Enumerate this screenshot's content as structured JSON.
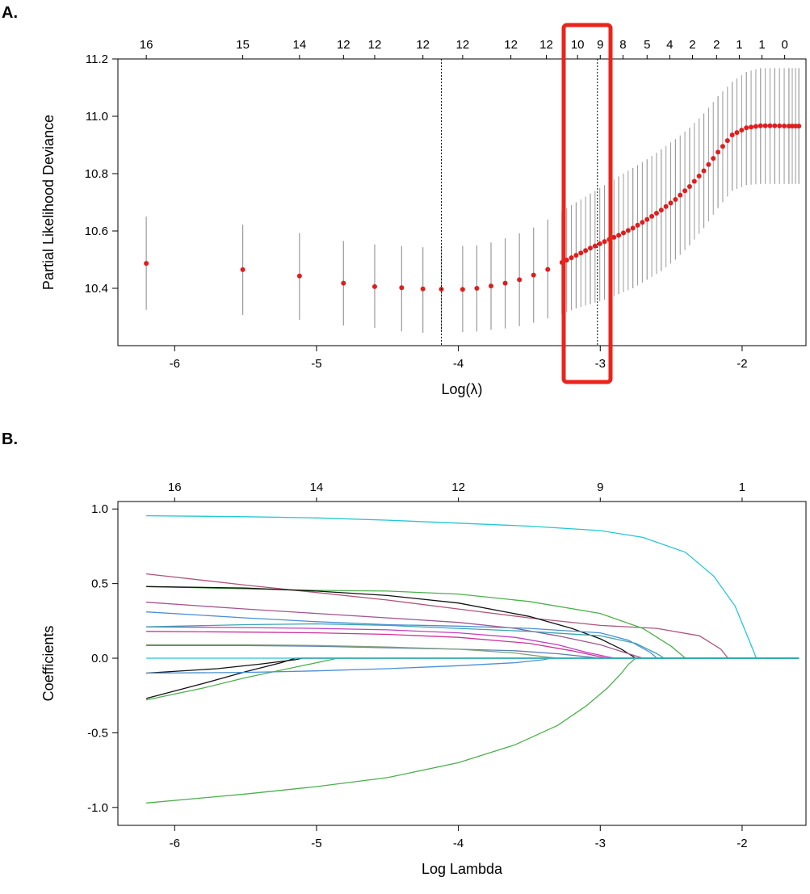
{
  "panels": {
    "a_label": "A.",
    "b_label": "B."
  },
  "chart_data": [
    {
      "type": "scatter",
      "title": "",
      "xlabel": "Log(λ)",
      "ylabel": "Partial Likelihood Deviance",
      "xlim": [
        -6.4,
        -1.55
      ],
      "ylim": [
        10.2,
        11.2
      ],
      "xticks": [
        -6,
        -5,
        -4,
        -3,
        -2
      ],
      "yticks": [
        10.4,
        10.6,
        10.8,
        11.0,
        11.2
      ],
      "xtick_labels": [
        "-6",
        "-5",
        "-4",
        "-3",
        "-2"
      ],
      "ytick_labels": [
        "10.4",
        "10.6",
        "10.8",
        "11.0",
        "11.2"
      ],
      "top_axis_counts": [
        {
          "x": -6.2,
          "label": "16"
        },
        {
          "x": -5.52,
          "label": "15"
        },
        {
          "x": -5.12,
          "label": "14"
        },
        {
          "x": -4.81,
          "label": "12"
        },
        {
          "x": -4.59,
          "label": "12"
        },
        {
          "x": -4.25,
          "label": "12"
        },
        {
          "x": -3.97,
          "label": "12"
        },
        {
          "x": -3.63,
          "label": "12"
        },
        {
          "x": -3.38,
          "label": "12"
        },
        {
          "x": -3.16,
          "label": "10"
        },
        {
          "x": -3.0,
          "label": "9"
        },
        {
          "x": -2.84,
          "label": "8"
        },
        {
          "x": -2.67,
          "label": "5"
        },
        {
          "x": -2.51,
          "label": "4"
        },
        {
          "x": -2.35,
          "label": "2"
        },
        {
          "x": -2.18,
          "label": "2"
        },
        {
          "x": -2.02,
          "label": "1"
        },
        {
          "x": -1.86,
          "label": "1"
        },
        {
          "x": -1.7,
          "label": "0"
        }
      ],
      "lambda_min": -4.12,
      "lambda_1se": -3.02,
      "highlight_color": "#e8251c",
      "point_color": "#e01d1d",
      "errorbar_color": "#9a9a9a",
      "x": [
        -6.2,
        -5.52,
        -5.12,
        -4.81,
        -4.59,
        -4.4,
        -4.25,
        -4.12,
        -3.97,
        -3.87,
        -3.77,
        -3.67,
        -3.57,
        -3.47,
        -3.37,
        -3.27,
        -3.17,
        -3.07,
        -2.97,
        -2.87,
        -2.77,
        -2.67,
        -2.57,
        -2.47,
        -2.37,
        -2.27,
        -2.17,
        -2.07,
        -1.97,
        -1.87,
        -1.77,
        -1.67,
        -1.6
      ],
      "y": [
        10.487,
        10.465,
        10.443,
        10.418,
        10.406,
        10.402,
        10.398,
        10.397,
        10.396,
        10.4,
        10.408,
        10.418,
        10.43,
        10.446,
        10.466,
        10.49,
        10.515,
        10.54,
        10.563,
        10.585,
        10.61,
        10.64,
        10.673,
        10.71,
        10.755,
        10.81,
        10.875,
        10.935,
        10.96,
        10.967,
        10.967,
        10.966,
        10.966
      ],
      "lower": [
        10.325,
        10.307,
        10.29,
        10.27,
        10.262,
        10.25,
        10.245,
        10.25,
        10.248,
        10.25,
        10.255,
        10.26,
        10.268,
        10.28,
        10.295,
        10.31,
        10.33,
        10.345,
        10.36,
        10.38,
        10.4,
        10.43,
        10.46,
        10.5,
        10.55,
        10.61,
        10.68,
        10.74,
        10.76,
        10.764,
        10.764,
        10.764,
        10.764
      ],
      "upper": [
        10.65,
        10.622,
        10.593,
        10.565,
        10.553,
        10.547,
        10.543,
        10.545,
        10.548,
        10.55,
        10.56,
        10.575,
        10.592,
        10.612,
        10.64,
        10.67,
        10.7,
        10.73,
        10.76,
        10.79,
        10.82,
        10.85,
        10.885,
        10.92,
        10.96,
        11.01,
        11.07,
        11.12,
        11.155,
        11.168,
        11.168,
        11.168,
        11.168
      ]
    },
    {
      "type": "line",
      "title": "",
      "xlabel": "Log Lambda",
      "ylabel": "Coefficients",
      "xlim": [
        -6.4,
        -1.55
      ],
      "ylim": [
        -1.12,
        1.05
      ],
      "xticks": [
        -6,
        -5,
        -4,
        -3,
        -2
      ],
      "yticks": [
        -1.0,
        -0.5,
        0.0,
        0.5,
        1.0
      ],
      "xtick_labels": [
        "-6",
        "-5",
        "-4",
        "-3",
        "-2"
      ],
      "ytick_labels": [
        "-1.0",
        "-0.5",
        "0.0",
        "0.5",
        "1.0"
      ],
      "top_axis_counts": [
        {
          "x": -6.0,
          "label": "16"
        },
        {
          "x": -5.0,
          "label": "14"
        },
        {
          "x": -4.0,
          "label": "12"
        },
        {
          "x": -3.0,
          "label": "9"
        },
        {
          "x": -2.0,
          "label": "1"
        }
      ],
      "series": [
        {
          "color": "#22c7d3",
          "x": [
            -6.2,
            -5.5,
            -5.0,
            -4.5,
            -4.0,
            -3.5,
            -3.0,
            -2.7,
            -2.4,
            -2.2,
            -2.05,
            -1.95,
            -1.9,
            -1.6
          ],
          "y": [
            0.955,
            0.948,
            0.94,
            0.925,
            0.905,
            0.885,
            0.855,
            0.81,
            0.71,
            0.55,
            0.35,
            0.12,
            0.0,
            0.0
          ]
        },
        {
          "color": "#b0557a",
          "x": [
            -6.2,
            -5.5,
            -5.0,
            -4.5,
            -4.0,
            -3.5,
            -3.0,
            -2.6,
            -2.3,
            -2.15,
            -2.1,
            -1.6
          ],
          "y": [
            0.565,
            0.49,
            0.44,
            0.39,
            0.33,
            0.27,
            0.22,
            0.2,
            0.15,
            0.06,
            0.0,
            0.0
          ]
        },
        {
          "color": "#4cb04c",
          "x": [
            -6.2,
            -5.5,
            -5.0,
            -4.5,
            -4.0,
            -3.5,
            -3.0,
            -2.7,
            -2.5,
            -2.4,
            -1.6
          ],
          "y": [
            0.48,
            0.465,
            0.455,
            0.45,
            0.43,
            0.38,
            0.3,
            0.2,
            0.08,
            0.0,
            0.0
          ]
        },
        {
          "color": "#111111",
          "x": [
            -6.2,
            -5.5,
            -5.0,
            -4.5,
            -4.0,
            -3.5,
            -3.2,
            -3.0,
            -2.85,
            -2.75,
            -1.6
          ],
          "y": [
            0.48,
            0.47,
            0.45,
            0.42,
            0.37,
            0.28,
            0.2,
            0.13,
            0.06,
            0.0,
            0.0
          ]
        },
        {
          "color": "#a0558f",
          "x": [
            -6.2,
            -5.5,
            -5.0,
            -4.5,
            -4.0,
            -3.6,
            -3.3,
            -3.0,
            -2.8,
            -2.7,
            -1.6
          ],
          "y": [
            0.375,
            0.33,
            0.3,
            0.27,
            0.24,
            0.2,
            0.15,
            0.09,
            0.03,
            0.0,
            0.0
          ]
        },
        {
          "color": "#4a8fd6",
          "x": [
            -6.2,
            -5.5,
            -5.0,
            -4.5,
            -4.0,
            -3.5,
            -3.0,
            -2.8,
            -2.65,
            -2.6,
            -1.6
          ],
          "y": [
            0.31,
            0.27,
            0.245,
            0.225,
            0.215,
            0.2,
            0.17,
            0.12,
            0.04,
            0.0,
            0.0
          ]
        },
        {
          "color": "#c23fc2",
          "x": [
            -6.2,
            -5.5,
            -5.0,
            -4.5,
            -4.0,
            -3.6,
            -3.3,
            -3.1,
            -2.95,
            -2.9,
            -1.6
          ],
          "y": [
            0.21,
            0.205,
            0.2,
            0.19,
            0.17,
            0.14,
            0.09,
            0.04,
            0.01,
            0.0,
            0.0
          ]
        },
        {
          "color": "#cc3399",
          "x": [
            -6.2,
            -5.5,
            -5.0,
            -4.5,
            -4.0,
            -3.5,
            -3.2,
            -3.0,
            -2.95,
            -1.6
          ],
          "y": [
            0.18,
            0.175,
            0.17,
            0.16,
            0.14,
            0.1,
            0.05,
            0.01,
            0.0,
            0.0
          ]
        },
        {
          "color": "#3aa5b0",
          "x": [
            -6.2,
            -5.5,
            -5.0,
            -4.5,
            -4.0,
            -3.5,
            -3.0,
            -2.75,
            -2.6,
            -2.55,
            -1.6
          ],
          "y": [
            0.21,
            0.225,
            0.23,
            0.22,
            0.2,
            0.18,
            0.15,
            0.1,
            0.03,
            0.0,
            0.0
          ]
        },
        {
          "color": "#5b7fb0",
          "x": [
            -6.2,
            -5.5,
            -5.0,
            -4.5,
            -4.0,
            -3.6,
            -3.3,
            -3.1,
            -3.0,
            -1.6
          ],
          "y": [
            0.085,
            0.085,
            0.08,
            0.07,
            0.06,
            0.05,
            0.03,
            0.01,
            0.0,
            0.0
          ]
        },
        {
          "color": "#7f9f7f",
          "x": [
            -6.2,
            -5.5,
            -5.0,
            -4.5,
            -4.0,
            -3.6,
            -3.4,
            -3.3,
            -1.6
          ],
          "y": [
            0.09,
            0.09,
            0.085,
            0.075,
            0.06,
            0.035,
            0.01,
            0.0,
            0.0
          ]
        },
        {
          "color": "#111111",
          "x": [
            -6.2,
            -5.7,
            -5.4,
            -5.15,
            -5.1,
            -1.6
          ],
          "y": [
            -0.1,
            -0.07,
            -0.04,
            -0.01,
            0.0,
            0.0
          ]
        },
        {
          "color": "#111111",
          "x": [
            -6.2,
            -5.8,
            -5.5,
            -5.25,
            -5.15,
            -1.6
          ],
          "y": [
            -0.27,
            -0.17,
            -0.09,
            -0.03,
            0.0,
            0.0
          ]
        },
        {
          "color": "#4cb04c",
          "x": [
            -6.2,
            -5.8,
            -5.5,
            -5.1,
            -4.9,
            -4.85,
            -1.6
          ],
          "y": [
            -0.28,
            -0.2,
            -0.13,
            -0.05,
            -0.01,
            0.0,
            0.0
          ]
        },
        {
          "color": "#4a8fd6",
          "x": [
            -6.2,
            -5.5,
            -5.0,
            -4.5,
            -4.0,
            -3.6,
            -3.4,
            -3.35,
            -1.6
          ],
          "y": [
            -0.1,
            -0.095,
            -0.085,
            -0.07,
            -0.05,
            -0.03,
            -0.01,
            0.0,
            0.0
          ]
        },
        {
          "color": "#4cb04c",
          "x": [
            -6.2,
            -5.5,
            -5.0,
            -4.5,
            -4.0,
            -3.6,
            -3.3,
            -3.1,
            -2.95,
            -2.85,
            -2.8,
            -2.75,
            -1.6
          ],
          "y": [
            -0.97,
            -0.91,
            -0.86,
            -0.8,
            -0.7,
            -0.58,
            -0.45,
            -0.32,
            -0.2,
            -0.1,
            -0.04,
            0.0,
            0.0
          ]
        },
        {
          "color": "#22c7d3",
          "x": [
            -6.2,
            -1.6
          ],
          "y": [
            0.0,
            0.0
          ]
        }
      ]
    }
  ]
}
